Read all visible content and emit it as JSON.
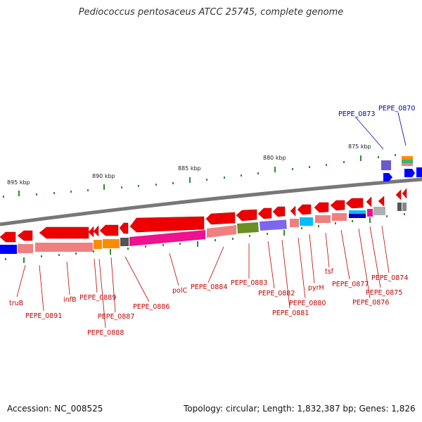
{
  "title": "Pediococcus pentosaceus ATCC 25745, complete genome",
  "footer": {
    "accession": "Accession: NC_008525",
    "summary": "Topology: circular; Length: 1,832,387 bp; Genes: 1,826"
  },
  "scale_labels": [
    "895 kbp",
    "890 kbp",
    "885 kbp",
    "880 kbp",
    "875 kbp"
  ],
  "gene_labels": [
    "truB",
    "PEPE_0891",
    "infB",
    "PEPE_0889",
    "PEPE_0887",
    "PEPE_0888",
    "PEPE_0886",
    "polC",
    "PEPE_0884",
    "PEPE_0883",
    "PEPE_0882",
    "PEPE_0881",
    "PEPE_0880",
    "pyrH",
    "tsf",
    "PEPE_0877",
    "PEPE_0876",
    "PEPE_0875",
    "PEPE_0874",
    "PEPE_0873",
    "PEPE_0870"
  ],
  "colors": {
    "gene_arrow": "#ee0000",
    "label_red": "#c00000",
    "label_blue": "#0000a0",
    "backbone": "#888888",
    "tick": "#2e8b2e",
    "cds_blue": "#0000ff",
    "cds_pink": "#f08080",
    "cds_orange": "#ff8c00",
    "cds_magenta": "#ee1290",
    "cds_olive": "#6b8e23",
    "cds_slate": "#7b68ee",
    "cds_cyan": "#00bfff",
    "cds_grey": "#a0a0a0"
  }
}
